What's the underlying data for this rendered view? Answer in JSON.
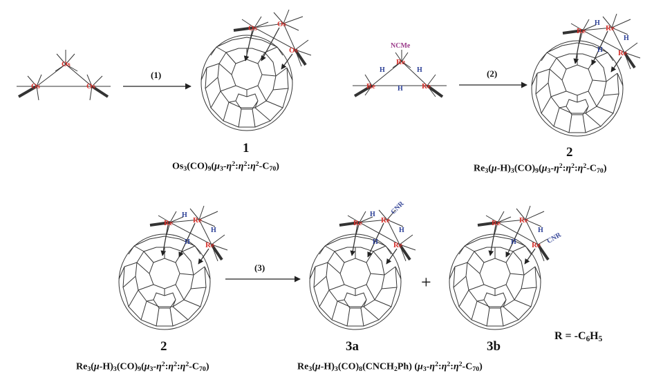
{
  "colors": {
    "metal": "#d8322c",
    "hydride": "#2b3f96",
    "ligand": "#3a4a9a",
    "ncme": "#9a3a8a",
    "bond": "#222222"
  },
  "atoms": {
    "os": "Os",
    "re": "Re",
    "h": "H",
    "ncme": "NCMe",
    "cnr": "CNR"
  },
  "steps": {
    "s1": "(1)",
    "s2": "(2)",
    "s3": "(3)"
  },
  "compounds": {
    "c1": "1",
    "c2": "2",
    "c2b": "2",
    "c3a": "3a",
    "c3b": "3b"
  },
  "formulas": {
    "os_complex": {
      "a": "Os",
      "b": "3",
      "c": "(CO)",
      "d": "9",
      "e": "(",
      "f": "μ",
      "g": "3",
      "h": "-",
      "i": "η",
      "j": "2",
      "k": ":",
      "l": "η",
      "m": "2",
      "n": ":",
      "o": "η",
      "p": "2",
      "q": "-C",
      "r": "70",
      "s": ")"
    },
    "re_complex": {
      "a": "Re",
      "b": "3",
      "c": "(",
      "d": "μ",
      "e": "-H)",
      "f": "3",
      "g": "(CO)",
      "h": "9",
      "i": "(",
      "j": "μ",
      "k": "3",
      "l": "-",
      "m": "η",
      "n": "2",
      "o": ":",
      "p": "η",
      "q": "2",
      "r": ":",
      "s": "η",
      "t": "2",
      "u": "-C",
      "v": "70",
      "w": ")"
    },
    "product": {
      "a": "Re",
      "b": "3",
      "c": "(",
      "d": "μ",
      "e": "-H)",
      "f": "3",
      "g": "(CO)",
      "h": "8",
      "i": "(CNCH",
      "j": "2",
      "k": "Ph) (",
      "l": "μ",
      "m": "3",
      "n": "-",
      "o": "η",
      "p": "2",
      "q": ":",
      "r": "η",
      "s": "2",
      "t": ":",
      "u": "η",
      "v": "2",
      "w": "-C",
      "x": "70",
      "y": ")"
    }
  },
  "plus_sign": "+",
  "r_def": {
    "a": "R = -C",
    "b": "6",
    "c": "H",
    "d": "5"
  }
}
